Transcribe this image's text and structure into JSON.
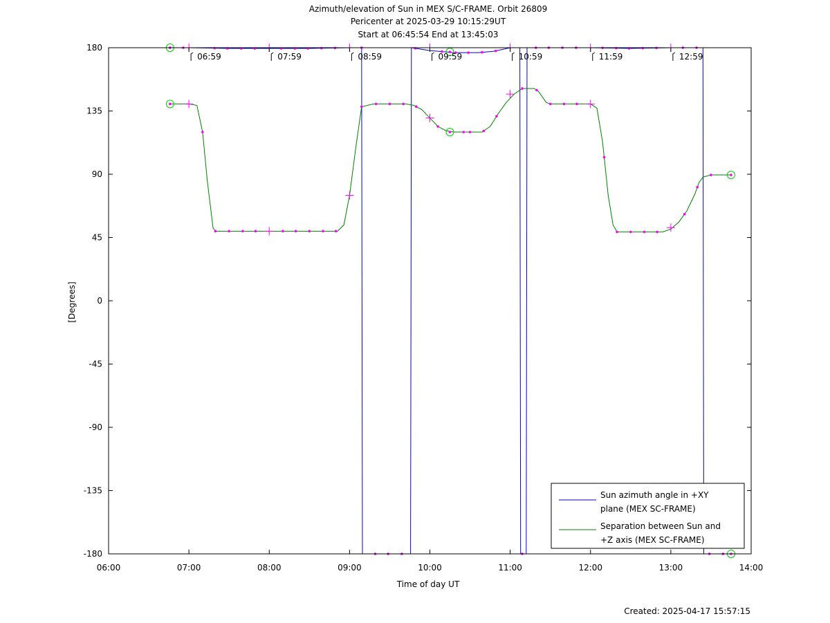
{
  "header": {
    "title": "Azimuth/elevation of Sun in MEX S/C-FRAME.  Orbit 26809",
    "subtitle1": "Pericenter at 2025-03-29 10:15:29UT",
    "subtitle2": "Start at 06:45:54 End at 13:45:03"
  },
  "footer": {
    "created": "Created: 2025-04-17 15:57:15"
  },
  "chart_data": {
    "type": "line",
    "xlabel": "Time of day UT",
    "ylabel": "[Degrees]",
    "xlim": [
      6,
      14
    ],
    "ylim": [
      -180,
      180
    ],
    "grid": false,
    "legend_position": "bottom-right",
    "x_ticks": [
      6,
      7,
      8,
      9,
      10,
      11,
      12,
      13,
      14
    ],
    "x_tick_labels": [
      "06:00",
      "07:00",
      "08:00",
      "09:00",
      "10:00",
      "11:00",
      "12:00",
      "13:00",
      "14:00"
    ],
    "y_ticks": [
      180,
      135,
      90,
      45,
      0,
      -45,
      -90,
      -135,
      -180
    ],
    "y_tick_labels": [
      "180",
      "135",
      "90",
      "45",
      "0",
      "-45",
      "-90",
      "-135",
      "-180"
    ],
    "hour_markers": [
      {
        "x": 7.0,
        "label": "06:59"
      },
      {
        "x": 8.0,
        "label": "07:59"
      },
      {
        "x": 9.0,
        "label": "08:59"
      },
      {
        "x": 10.0,
        "label": "09:59"
      },
      {
        "x": 11.0,
        "label": "10:59"
      },
      {
        "x": 12.0,
        "label": "11:59"
      },
      {
        "x": 13.0,
        "label": "12:59"
      }
    ],
    "series": [
      {
        "name": "Sun azimuth angle in +XY plane (MEX SC-FRAME)",
        "color": "#0000cc",
        "x": [
          6.765,
          7.0,
          7.5,
          8.0,
          8.5,
          9.0,
          9.15,
          9.16,
          9.5,
          9.76,
          9.77,
          10.0,
          10.3,
          10.6,
          10.8,
          11.0,
          11.12,
          11.13,
          11.2,
          11.21,
          11.5,
          12.0,
          12.5,
          13.0,
          13.4,
          13.41,
          13.75
        ],
        "y": [
          180,
          180,
          179.5,
          179.5,
          179.5,
          180,
          180,
          -180,
          -180,
          -180,
          180,
          178,
          176.5,
          176.5,
          177.5,
          180,
          180,
          -180,
          -180,
          180,
          180,
          180,
          179.5,
          180,
          180,
          -180,
          -180
        ]
      },
      {
        "name": "Separation between Sun and +Z axis (MEX SC-FRAME)",
        "color": "#008000",
        "x": [
          6.765,
          6.9,
          7.0,
          7.1,
          7.17,
          7.23,
          7.3,
          7.33,
          7.5,
          8.0,
          8.5,
          8.85,
          8.93,
          9.0,
          9.08,
          9.15,
          9.3,
          9.7,
          9.8,
          9.9,
          10.0,
          10.1,
          10.2,
          10.3,
          10.5,
          10.65,
          10.75,
          10.85,
          10.95,
          11.05,
          11.15,
          11.3,
          11.35,
          11.45,
          11.5,
          12.0,
          12.08,
          12.15,
          12.22,
          12.28,
          12.33,
          12.5,
          12.9,
          13.0,
          13.1,
          13.2,
          13.3,
          13.35,
          13.4,
          13.5,
          13.75
        ],
        "y": [
          140,
          140,
          140,
          139,
          120,
          85,
          52,
          49.5,
          49.5,
          49.5,
          49.5,
          49.5,
          54,
          75,
          110,
          138,
          140,
          140,
          139,
          136,
          130,
          124,
          121,
          120,
          120,
          120,
          124,
          133,
          141,
          147,
          151,
          151,
          149,
          141,
          140,
          140,
          137,
          113,
          75,
          54,
          49,
          49,
          49,
          51,
          56,
          64,
          76,
          84,
          88,
          89.5,
          89.5
        ]
      }
    ],
    "azimuth_markers": [
      6.765,
      6.93,
      7.32,
      7.48,
      7.65,
      7.82,
      8.15,
      8.32,
      8.48,
      8.65,
      8.82,
      9.15,
      9.32,
      9.48,
      9.65,
      9.82,
      10.15,
      10.32,
      10.48,
      10.65,
      10.82,
      11.15,
      11.32,
      11.48,
      11.65,
      11.82,
      12.15,
      12.32,
      12.48,
      12.65,
      12.82,
      13.15,
      13.32,
      13.48,
      13.65
    ],
    "separation_markers": [
      7.17,
      7.33,
      7.5,
      7.67,
      7.83,
      8.17,
      8.33,
      8.5,
      8.67,
      8.83,
      9.15,
      9.33,
      9.5,
      9.67,
      9.83,
      10.1,
      10.42,
      10.5,
      10.67,
      10.83,
      11.15,
      11.33,
      11.5,
      11.67,
      11.83,
      12.17,
      12.33,
      12.5,
      12.67,
      12.83,
      13.17,
      13.33,
      13.5
    ],
    "cross_markers": [
      {
        "series": 0,
        "x": 7.0,
        "y": 180
      },
      {
        "series": 0,
        "x": 8.0,
        "y": 180
      },
      {
        "series": 0,
        "x": 9.0,
        "y": 180
      },
      {
        "series": 0,
        "x": 10.0,
        "y": 180
      },
      {
        "series": 0,
        "x": 11.0,
        "y": 180
      },
      {
        "series": 0,
        "x": 12.0,
        "y": 180
      },
      {
        "series": 0,
        "x": 13.0,
        "y": 180
      },
      {
        "series": 1,
        "x": 7.0,
        "y": 140
      },
      {
        "series": 1,
        "x": 8.0,
        "y": 49.5
      },
      {
        "series": 1,
        "x": 9.0,
        "y": 75
      },
      {
        "series": 1,
        "x": 10.0,
        "y": 130
      },
      {
        "series": 1,
        "x": 11.0,
        "y": 147
      },
      {
        "series": 1,
        "x": 12.0,
        "y": 140
      },
      {
        "series": 1,
        "x": 13.0,
        "y": 52
      }
    ],
    "circle_markers": [
      {
        "x": 6.765,
        "y": 180
      },
      {
        "x": 6.765,
        "y": 140
      },
      {
        "x": 10.25,
        "y": 177
      },
      {
        "x": 10.25,
        "y": 120
      },
      {
        "x": 13.75,
        "y": -180
      },
      {
        "x": 13.75,
        "y": 89.5
      }
    ]
  }
}
